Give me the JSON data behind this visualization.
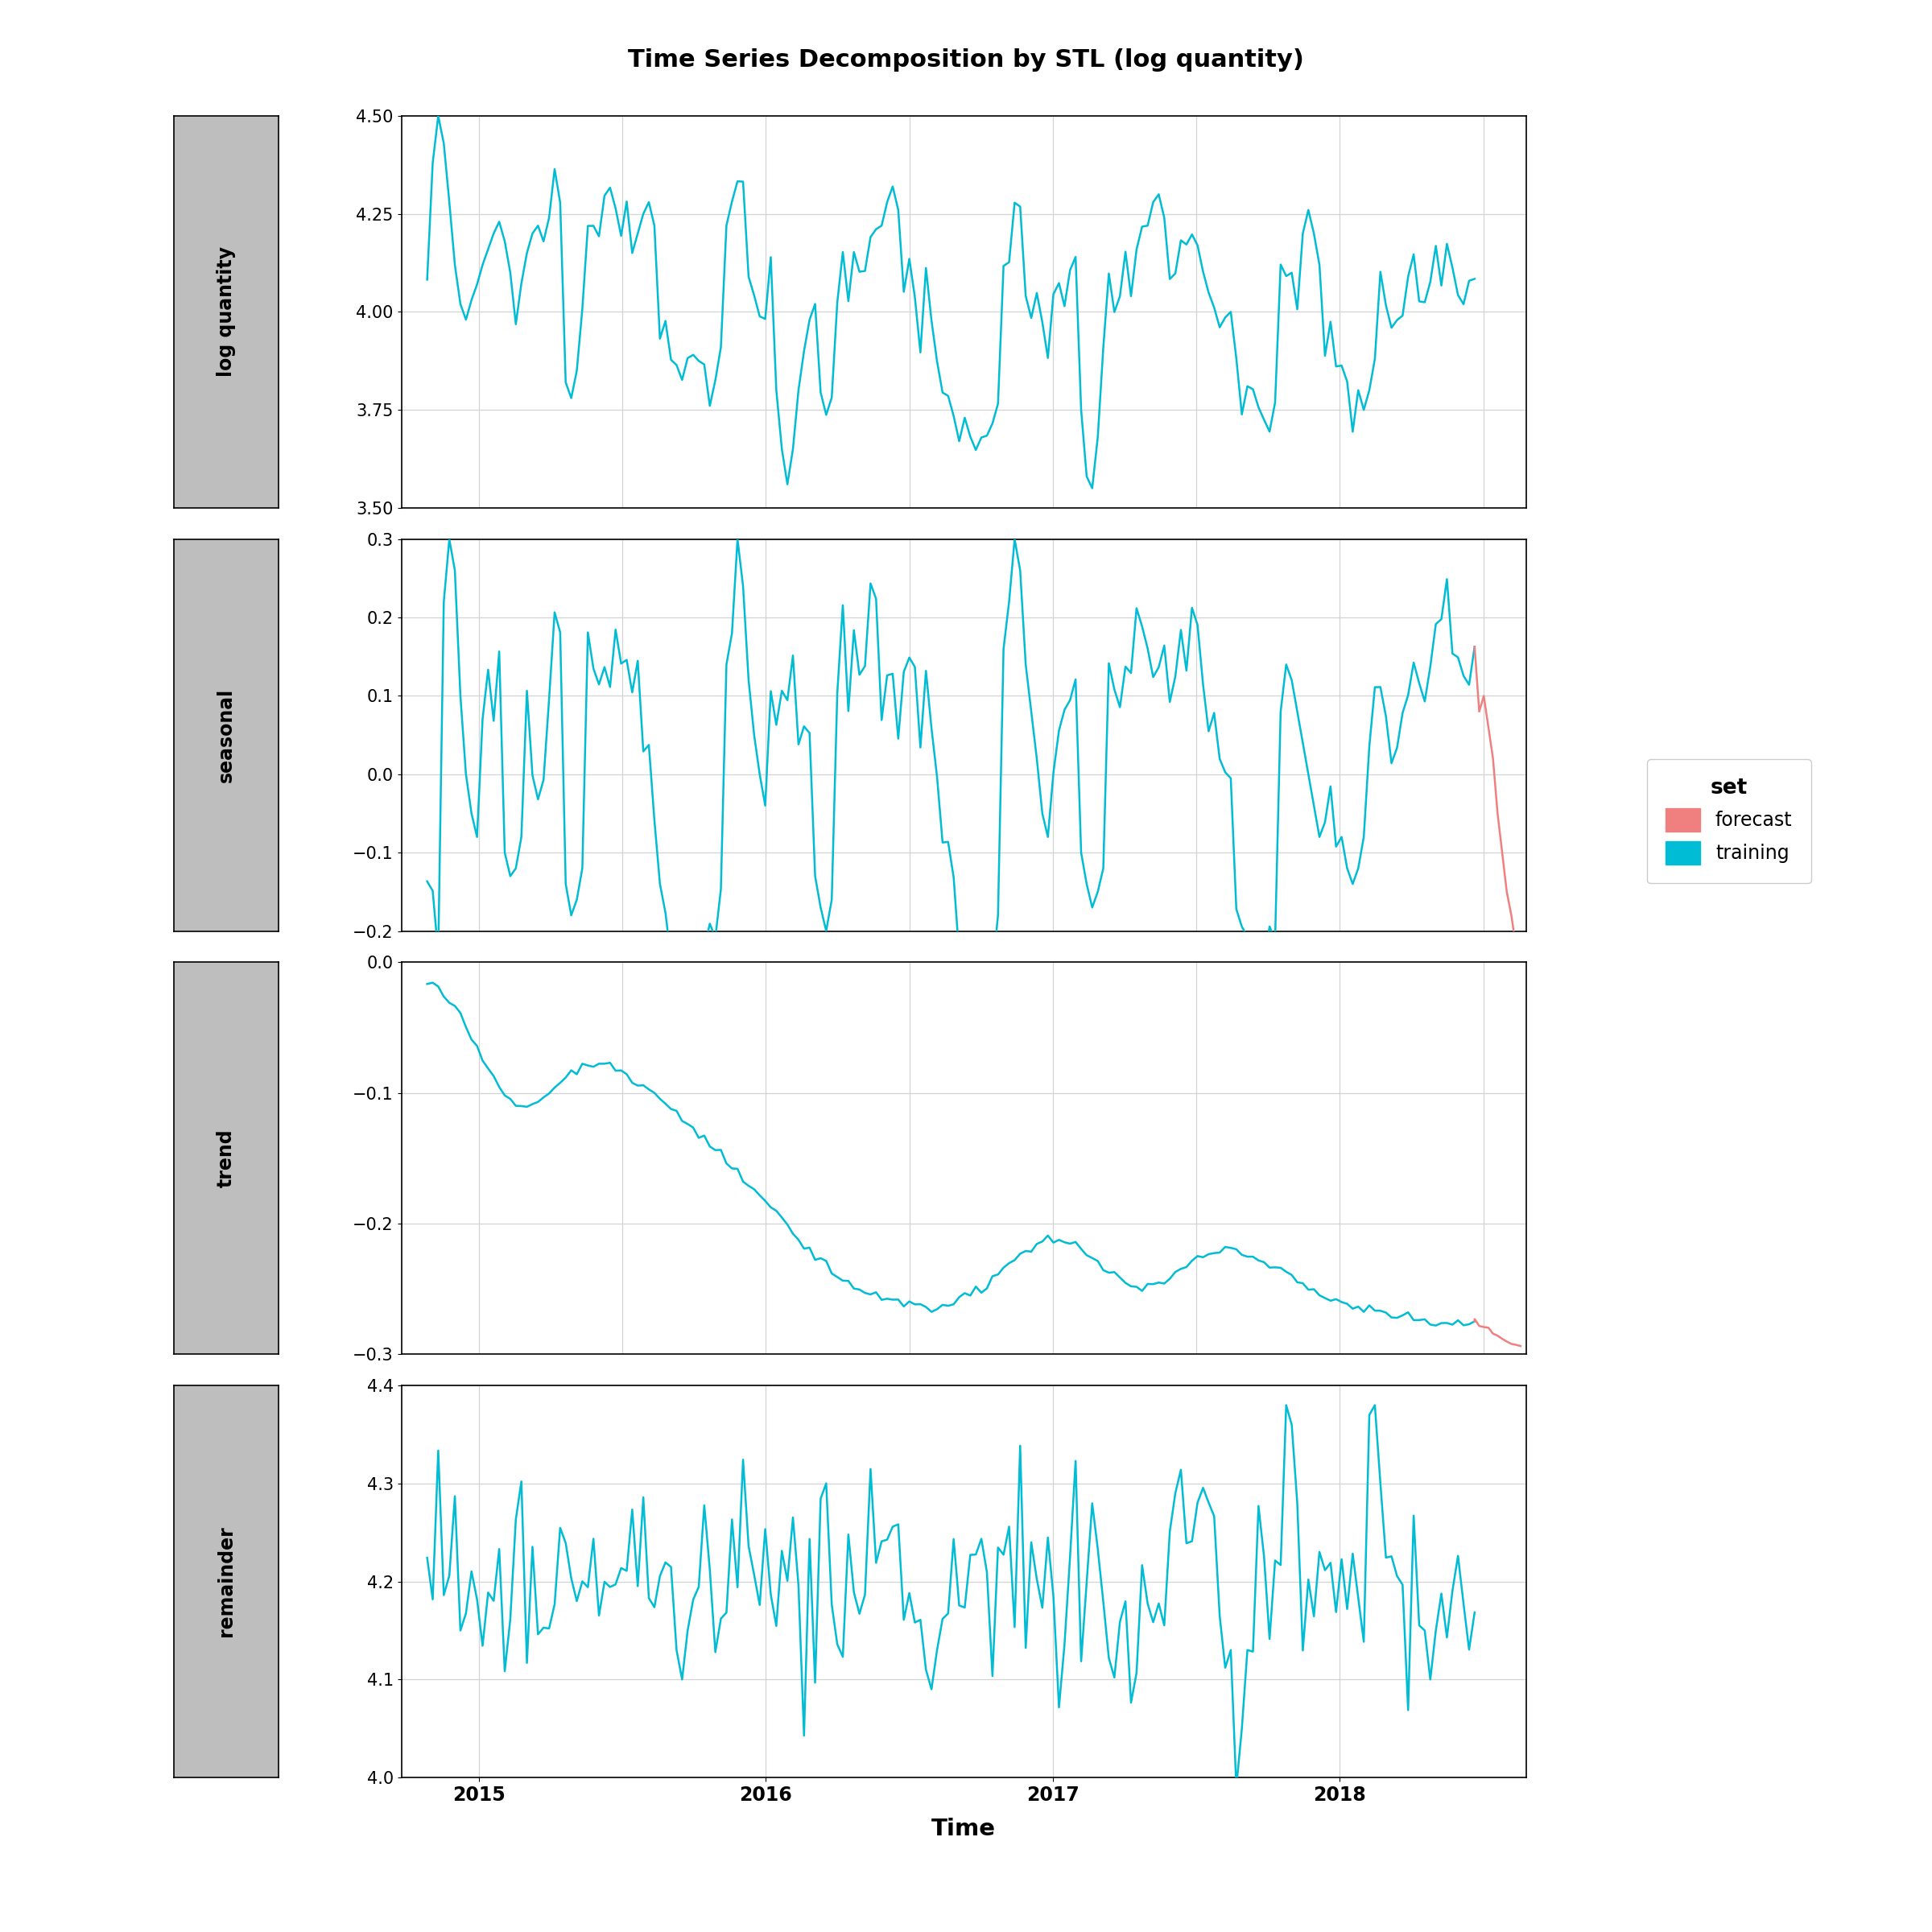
{
  "title": "Time Series Decomposition by STL (log quantity)",
  "xlabel": "Time",
  "panels": [
    "log quantity",
    "seasonal",
    "trend",
    "remainder"
  ],
  "ylims": {
    "log quantity": [
      3.5,
      4.5
    ],
    "seasonal": [
      -0.2,
      0.3
    ],
    "trend": [
      -0.3,
      0.0
    ],
    "remainder": [
      4.0,
      4.4
    ]
  },
  "yticks": {
    "log quantity": [
      3.5,
      3.75,
      4.0,
      4.25,
      4.5
    ],
    "seasonal": [
      -0.2,
      -0.1,
      0.0,
      0.1,
      0.2,
      0.3
    ],
    "trend": [
      -0.3,
      -0.2,
      -0.1,
      0.0
    ],
    "remainder": [
      4.0,
      4.1,
      4.2,
      4.3,
      4.4
    ]
  },
  "xlim_start": 2014.73,
  "xlim_end": 2018.65,
  "xticks": [
    2015,
    2016,
    2017,
    2018
  ],
  "training_color": "#00BCD4",
  "forecast_color": "#F08080",
  "legend_title": "set",
  "legend_items": [
    "forecast",
    "training"
  ],
  "label_bg_color": "#BEBEBE",
  "panel_bg_color": "#FFFFFF",
  "fig_bg_color": "#FFFFFF",
  "grid_color": "#D3D3D3",
  "training_lw": 1.8,
  "forecast_lw": 1.8,
  "title_fontsize": 22,
  "label_fontsize": 17,
  "tick_fontsize": 15,
  "legend_fontsize": 17,
  "legend_title_fontsize": 19
}
